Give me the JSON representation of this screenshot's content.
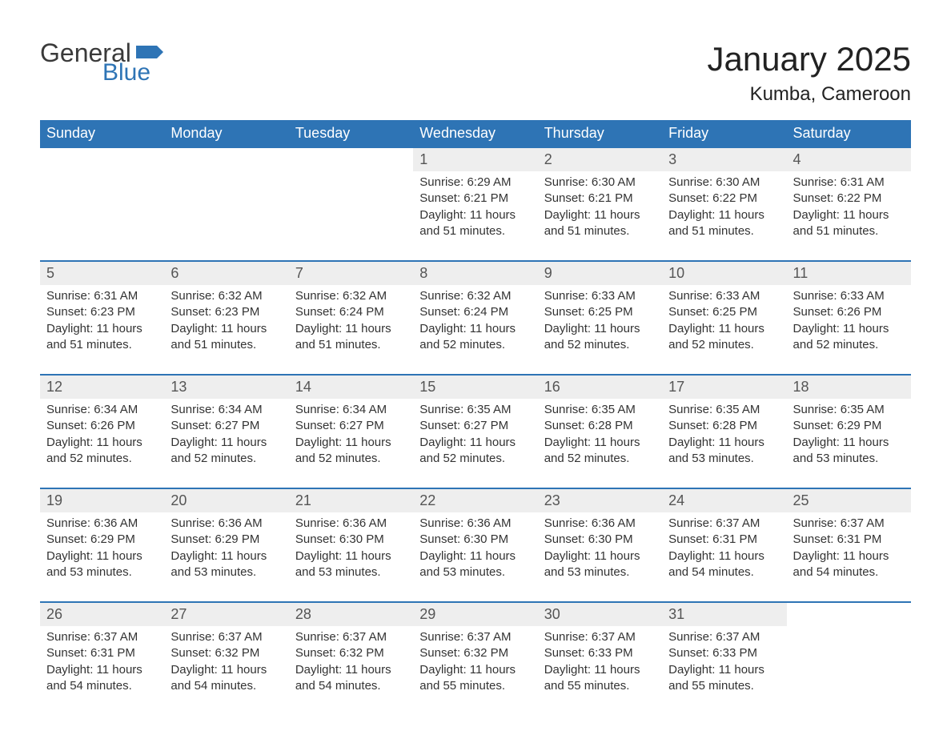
{
  "brand": {
    "line1": "General",
    "line2": "Blue",
    "flag_color": "#2e74b5"
  },
  "title": "January 2025",
  "location": "Kumba, Cameroon",
  "colors": {
    "header_bg": "#2e74b5",
    "header_text": "#ffffff",
    "daynum_bg": "#eeeeee",
    "row_border": "#2e74b5",
    "body_text": "#333333",
    "page_bg": "#ffffff"
  },
  "typography": {
    "title_fontsize": 42,
    "location_fontsize": 24,
    "header_fontsize": 18,
    "daynum_fontsize": 18,
    "detail_fontsize": 15
  },
  "layout": {
    "columns": 7,
    "weeks": 5,
    "first_day_column_index": 3
  },
  "weekdays": [
    "Sunday",
    "Monday",
    "Tuesday",
    "Wednesday",
    "Thursday",
    "Friday",
    "Saturday"
  ],
  "weeks": [
    [
      null,
      null,
      null,
      {
        "day": "1",
        "sunrise": "Sunrise: 6:29 AM",
        "sunset": "Sunset: 6:21 PM",
        "daylight": "Daylight: 11 hours and 51 minutes."
      },
      {
        "day": "2",
        "sunrise": "Sunrise: 6:30 AM",
        "sunset": "Sunset: 6:21 PM",
        "daylight": "Daylight: 11 hours and 51 minutes."
      },
      {
        "day": "3",
        "sunrise": "Sunrise: 6:30 AM",
        "sunset": "Sunset: 6:22 PM",
        "daylight": "Daylight: 11 hours and 51 minutes."
      },
      {
        "day": "4",
        "sunrise": "Sunrise: 6:31 AM",
        "sunset": "Sunset: 6:22 PM",
        "daylight": "Daylight: 11 hours and 51 minutes."
      }
    ],
    [
      {
        "day": "5",
        "sunrise": "Sunrise: 6:31 AM",
        "sunset": "Sunset: 6:23 PM",
        "daylight": "Daylight: 11 hours and 51 minutes."
      },
      {
        "day": "6",
        "sunrise": "Sunrise: 6:32 AM",
        "sunset": "Sunset: 6:23 PM",
        "daylight": "Daylight: 11 hours and 51 minutes."
      },
      {
        "day": "7",
        "sunrise": "Sunrise: 6:32 AM",
        "sunset": "Sunset: 6:24 PM",
        "daylight": "Daylight: 11 hours and 51 minutes."
      },
      {
        "day": "8",
        "sunrise": "Sunrise: 6:32 AM",
        "sunset": "Sunset: 6:24 PM",
        "daylight": "Daylight: 11 hours and 52 minutes."
      },
      {
        "day": "9",
        "sunrise": "Sunrise: 6:33 AM",
        "sunset": "Sunset: 6:25 PM",
        "daylight": "Daylight: 11 hours and 52 minutes."
      },
      {
        "day": "10",
        "sunrise": "Sunrise: 6:33 AM",
        "sunset": "Sunset: 6:25 PM",
        "daylight": "Daylight: 11 hours and 52 minutes."
      },
      {
        "day": "11",
        "sunrise": "Sunrise: 6:33 AM",
        "sunset": "Sunset: 6:26 PM",
        "daylight": "Daylight: 11 hours and 52 minutes."
      }
    ],
    [
      {
        "day": "12",
        "sunrise": "Sunrise: 6:34 AM",
        "sunset": "Sunset: 6:26 PM",
        "daylight": "Daylight: 11 hours and 52 minutes."
      },
      {
        "day": "13",
        "sunrise": "Sunrise: 6:34 AM",
        "sunset": "Sunset: 6:27 PM",
        "daylight": "Daylight: 11 hours and 52 minutes."
      },
      {
        "day": "14",
        "sunrise": "Sunrise: 6:34 AM",
        "sunset": "Sunset: 6:27 PM",
        "daylight": "Daylight: 11 hours and 52 minutes."
      },
      {
        "day": "15",
        "sunrise": "Sunrise: 6:35 AM",
        "sunset": "Sunset: 6:27 PM",
        "daylight": "Daylight: 11 hours and 52 minutes."
      },
      {
        "day": "16",
        "sunrise": "Sunrise: 6:35 AM",
        "sunset": "Sunset: 6:28 PM",
        "daylight": "Daylight: 11 hours and 52 minutes."
      },
      {
        "day": "17",
        "sunrise": "Sunrise: 6:35 AM",
        "sunset": "Sunset: 6:28 PM",
        "daylight": "Daylight: 11 hours and 53 minutes."
      },
      {
        "day": "18",
        "sunrise": "Sunrise: 6:35 AM",
        "sunset": "Sunset: 6:29 PM",
        "daylight": "Daylight: 11 hours and 53 minutes."
      }
    ],
    [
      {
        "day": "19",
        "sunrise": "Sunrise: 6:36 AM",
        "sunset": "Sunset: 6:29 PM",
        "daylight": "Daylight: 11 hours and 53 minutes."
      },
      {
        "day": "20",
        "sunrise": "Sunrise: 6:36 AM",
        "sunset": "Sunset: 6:29 PM",
        "daylight": "Daylight: 11 hours and 53 minutes."
      },
      {
        "day": "21",
        "sunrise": "Sunrise: 6:36 AM",
        "sunset": "Sunset: 6:30 PM",
        "daylight": "Daylight: 11 hours and 53 minutes."
      },
      {
        "day": "22",
        "sunrise": "Sunrise: 6:36 AM",
        "sunset": "Sunset: 6:30 PM",
        "daylight": "Daylight: 11 hours and 53 minutes."
      },
      {
        "day": "23",
        "sunrise": "Sunrise: 6:36 AM",
        "sunset": "Sunset: 6:30 PM",
        "daylight": "Daylight: 11 hours and 53 minutes."
      },
      {
        "day": "24",
        "sunrise": "Sunrise: 6:37 AM",
        "sunset": "Sunset: 6:31 PM",
        "daylight": "Daylight: 11 hours and 54 minutes."
      },
      {
        "day": "25",
        "sunrise": "Sunrise: 6:37 AM",
        "sunset": "Sunset: 6:31 PM",
        "daylight": "Daylight: 11 hours and 54 minutes."
      }
    ],
    [
      {
        "day": "26",
        "sunrise": "Sunrise: 6:37 AM",
        "sunset": "Sunset: 6:31 PM",
        "daylight": "Daylight: 11 hours and 54 minutes."
      },
      {
        "day": "27",
        "sunrise": "Sunrise: 6:37 AM",
        "sunset": "Sunset: 6:32 PM",
        "daylight": "Daylight: 11 hours and 54 minutes."
      },
      {
        "day": "28",
        "sunrise": "Sunrise: 6:37 AM",
        "sunset": "Sunset: 6:32 PM",
        "daylight": "Daylight: 11 hours and 54 minutes."
      },
      {
        "day": "29",
        "sunrise": "Sunrise: 6:37 AM",
        "sunset": "Sunset: 6:32 PM",
        "daylight": "Daylight: 11 hours and 55 minutes."
      },
      {
        "day": "30",
        "sunrise": "Sunrise: 6:37 AM",
        "sunset": "Sunset: 6:33 PM",
        "daylight": "Daylight: 11 hours and 55 minutes."
      },
      {
        "day": "31",
        "sunrise": "Sunrise: 6:37 AM",
        "sunset": "Sunset: 6:33 PM",
        "daylight": "Daylight: 11 hours and 55 minutes."
      },
      null
    ]
  ]
}
